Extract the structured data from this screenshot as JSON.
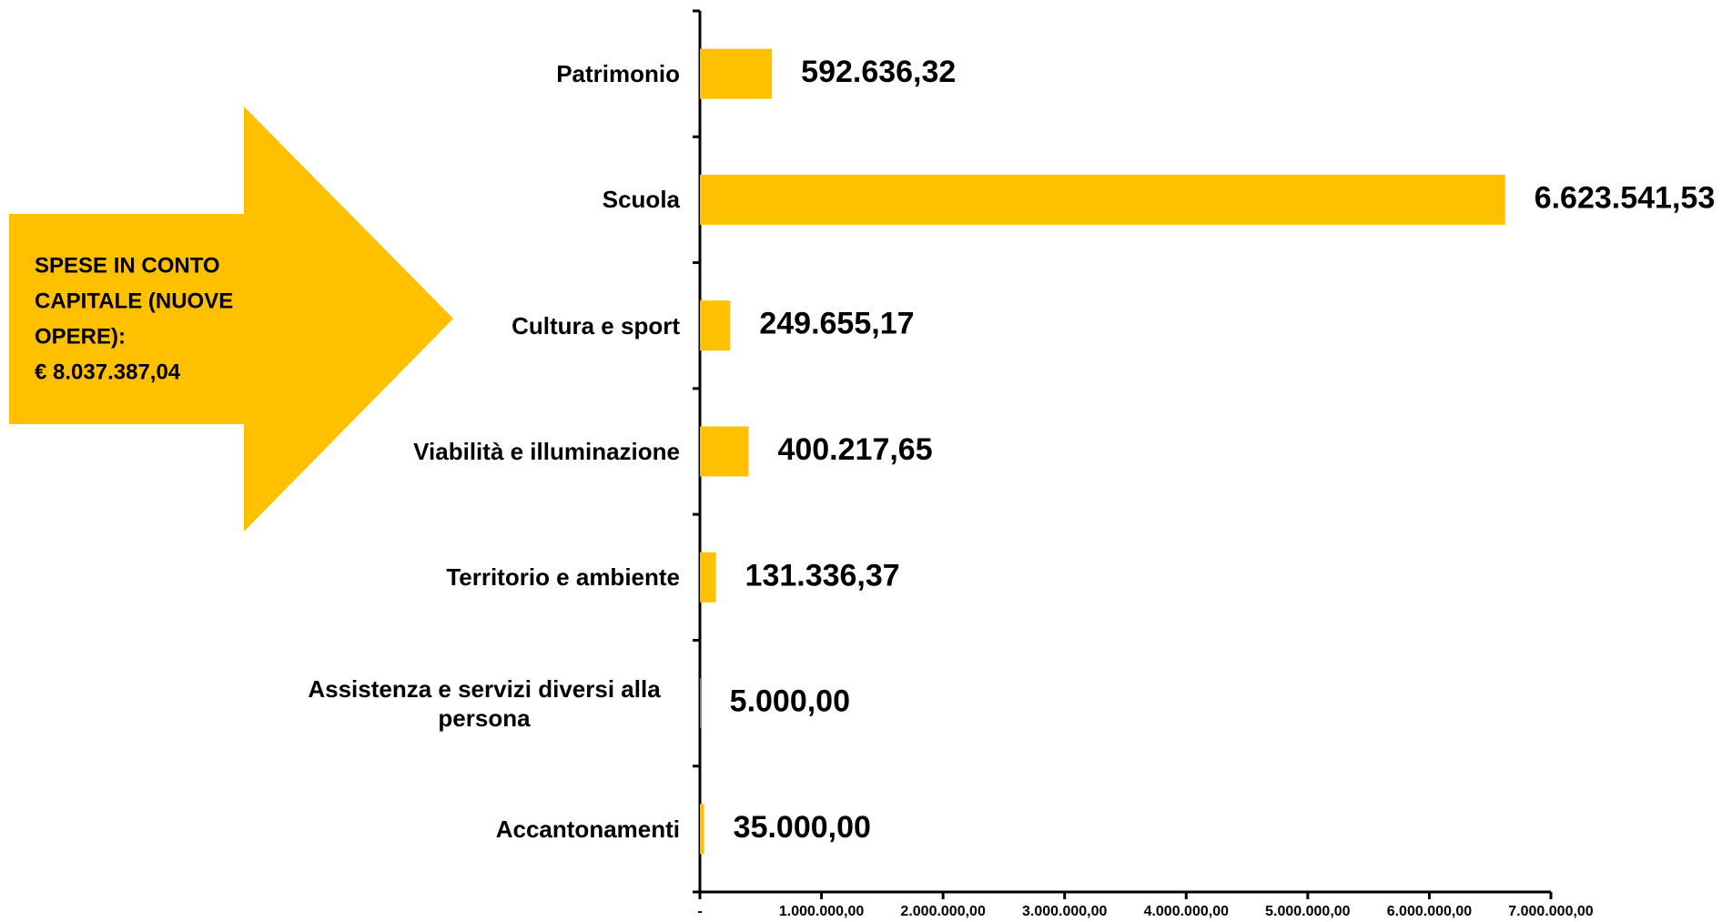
{
  "chart_data": {
    "type": "bar",
    "orientation": "horizontal",
    "categories": [
      "Patrimonio",
      "Scuola",
      "Cultura e sport",
      "Viabilità e illuminazione",
      "Territorio e ambiente",
      "Assistenza e servizi diversi alla persona",
      "Accantonamenti"
    ],
    "values": [
      592636.32,
      6623541.53,
      249655.17,
      400217.65,
      131336.37,
      5000,
      35000
    ],
    "value_labels": [
      "592.636,32",
      "6.623.541,53",
      "249.655,17",
      "400.217,65",
      "131.336,37",
      "5.000,00",
      "35.000,00"
    ],
    "color": "#FFC000",
    "xlim": [
      0,
      7000000
    ],
    "xticks": [
      {
        "value": 0,
        "label": "-"
      },
      {
        "value": 1000000,
        "label": "1.000.000,00"
      },
      {
        "value": 2000000,
        "label": "2.000.000,00"
      },
      {
        "value": 3000000,
        "label": "3.000.000,00"
      },
      {
        "value": 4000000,
        "label": "4.000.000,00"
      },
      {
        "value": 5000000,
        "label": "5.000.000,00"
      },
      {
        "value": 6000000,
        "label": "6.000.000,00"
      },
      {
        "value": 7000000,
        "label": "7.000.000,00"
      }
    ],
    "grid": false,
    "annotation": [
      "SPESE IN CONTO",
      "CAPITALE (NUOVE",
      "OPERE):",
      "€ 8.037.387,04"
    ]
  }
}
